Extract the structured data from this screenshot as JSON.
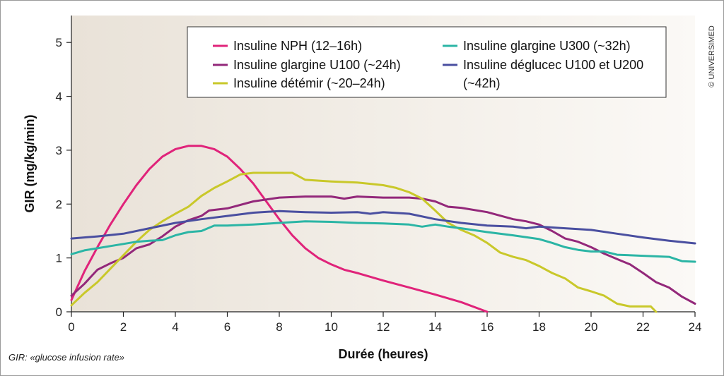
{
  "footnote": "GIR: «glucose infusion rate»",
  "credit": "© UNIVERSIMED",
  "chart_data": {
    "type": "line",
    "xlabel": "Durée (heures)",
    "ylabel": "GIR (mg/kg/min)",
    "xlim": [
      0,
      24
    ],
    "ylim": [
      0,
      5.5
    ],
    "xticks": [
      0,
      2,
      4,
      6,
      8,
      10,
      12,
      14,
      16,
      18,
      20,
      22,
      24
    ],
    "yticks": [
      0,
      1,
      2,
      3,
      4,
      5
    ],
    "grid": false,
    "legend_position": "top-right",
    "series": [
      {
        "name": "Insuline NPH (12–16h)",
        "color": "#e0237a",
        "points": [
          [
            0,
            0.22
          ],
          [
            0.5,
            0.75
          ],
          [
            1,
            1.2
          ],
          [
            1.5,
            1.62
          ],
          [
            2,
            2.0
          ],
          [
            2.5,
            2.35
          ],
          [
            3,
            2.65
          ],
          [
            3.5,
            2.88
          ],
          [
            4,
            3.02
          ],
          [
            4.5,
            3.08
          ],
          [
            5,
            3.08
          ],
          [
            5.5,
            3.02
          ],
          [
            6,
            2.88
          ],
          [
            6.5,
            2.65
          ],
          [
            7,
            2.38
          ],
          [
            7.5,
            2.05
          ],
          [
            8,
            1.72
          ],
          [
            8.5,
            1.42
          ],
          [
            9,
            1.18
          ],
          [
            9.5,
            1.0
          ],
          [
            10,
            0.88
          ],
          [
            10.5,
            0.78
          ],
          [
            11,
            0.72
          ],
          [
            12,
            0.58
          ],
          [
            13,
            0.45
          ],
          [
            14,
            0.32
          ],
          [
            15,
            0.18
          ],
          [
            16,
            0.0
          ]
        ]
      },
      {
        "name": "Insuline glargine U100 (~24h)",
        "color": "#93287a",
        "points": [
          [
            0,
            0.3
          ],
          [
            0.5,
            0.52
          ],
          [
            1,
            0.78
          ],
          [
            1.5,
            0.9
          ],
          [
            2,
            1.0
          ],
          [
            2.5,
            1.18
          ],
          [
            3,
            1.25
          ],
          [
            3.5,
            1.4
          ],
          [
            4,
            1.58
          ],
          [
            4.5,
            1.7
          ],
          [
            5,
            1.78
          ],
          [
            5.3,
            1.88
          ],
          [
            6,
            1.92
          ],
          [
            7,
            2.05
          ],
          [
            8,
            2.12
          ],
          [
            9,
            2.14
          ],
          [
            10,
            2.14
          ],
          [
            10.5,
            2.1
          ],
          [
            11,
            2.14
          ],
          [
            12,
            2.12
          ],
          [
            13,
            2.12
          ],
          [
            13.5,
            2.1
          ],
          [
            14,
            2.05
          ],
          [
            14.5,
            1.95
          ],
          [
            15,
            1.93
          ],
          [
            16,
            1.85
          ],
          [
            17,
            1.72
          ],
          [
            17.5,
            1.68
          ],
          [
            18,
            1.62
          ],
          [
            18.5,
            1.5
          ],
          [
            19,
            1.36
          ],
          [
            19.5,
            1.3
          ],
          [
            20,
            1.2
          ],
          [
            20.5,
            1.08
          ],
          [
            21,
            0.98
          ],
          [
            21.5,
            0.88
          ],
          [
            22,
            0.72
          ],
          [
            22.5,
            0.55
          ],
          [
            23,
            0.45
          ],
          [
            23.5,
            0.28
          ],
          [
            24,
            0.15
          ]
        ]
      },
      {
        "name": "Insuline détémir (~20–24h)",
        "color": "#c9c82a",
        "points": [
          [
            0,
            0.12
          ],
          [
            0.5,
            0.35
          ],
          [
            1,
            0.55
          ],
          [
            1.5,
            0.8
          ],
          [
            2,
            1.05
          ],
          [
            2.5,
            1.3
          ],
          [
            3,
            1.52
          ],
          [
            3.5,
            1.68
          ],
          [
            4,
            1.82
          ],
          [
            4.5,
            1.95
          ],
          [
            5,
            2.15
          ],
          [
            5.5,
            2.3
          ],
          [
            6,
            2.42
          ],
          [
            6.5,
            2.55
          ],
          [
            7,
            2.58
          ],
          [
            8,
            2.58
          ],
          [
            8.5,
            2.58
          ],
          [
            9,
            2.45
          ],
          [
            10,
            2.42
          ],
          [
            11,
            2.4
          ],
          [
            12,
            2.35
          ],
          [
            12.5,
            2.3
          ],
          [
            13,
            2.22
          ],
          [
            13.5,
            2.1
          ],
          [
            14,
            1.88
          ],
          [
            14.5,
            1.65
          ],
          [
            15,
            1.52
          ],
          [
            15.5,
            1.42
          ],
          [
            16,
            1.28
          ],
          [
            16.5,
            1.1
          ],
          [
            17,
            1.02
          ],
          [
            17.5,
            0.96
          ],
          [
            18,
            0.85
          ],
          [
            18.5,
            0.72
          ],
          [
            19,
            0.62
          ],
          [
            19.5,
            0.45
          ],
          [
            20,
            0.38
          ],
          [
            20.5,
            0.3
          ],
          [
            21,
            0.15
          ],
          [
            21.5,
            0.1
          ],
          [
            22,
            0.1
          ],
          [
            22.3,
            0.1
          ],
          [
            22.5,
            0.0
          ]
        ]
      },
      {
        "name": "Insuline glargine U300 (~32h)",
        "color": "#2bb5a5",
        "points": [
          [
            0,
            1.07
          ],
          [
            0.5,
            1.14
          ],
          [
            1,
            1.18
          ],
          [
            1.5,
            1.22
          ],
          [
            2,
            1.26
          ],
          [
            2.5,
            1.3
          ],
          [
            3,
            1.32
          ],
          [
            3.5,
            1.33
          ],
          [
            4,
            1.42
          ],
          [
            4.5,
            1.48
          ],
          [
            5,
            1.5
          ],
          [
            5.5,
            1.6
          ],
          [
            6,
            1.6
          ],
          [
            7,
            1.62
          ],
          [
            8,
            1.65
          ],
          [
            9,
            1.68
          ],
          [
            10,
            1.67
          ],
          [
            11,
            1.65
          ],
          [
            12,
            1.64
          ],
          [
            13,
            1.62
          ],
          [
            13.5,
            1.58
          ],
          [
            14,
            1.62
          ],
          [
            14.5,
            1.58
          ],
          [
            15,
            1.55
          ],
          [
            16,
            1.48
          ],
          [
            17,
            1.42
          ],
          [
            18,
            1.35
          ],
          [
            18.5,
            1.28
          ],
          [
            19,
            1.2
          ],
          [
            19.5,
            1.15
          ],
          [
            20,
            1.12
          ],
          [
            20.5,
            1.12
          ],
          [
            21,
            1.06
          ],
          [
            22,
            1.04
          ],
          [
            23,
            1.02
          ],
          [
            23.5,
            0.94
          ],
          [
            24,
            0.93
          ]
        ]
      },
      {
        "name": "Insuline déglucec U100 et U200 (~42h)",
        "color": "#4a4fa0",
        "points": [
          [
            0,
            1.36
          ],
          [
            1,
            1.4
          ],
          [
            2,
            1.45
          ],
          [
            3,
            1.55
          ],
          [
            4,
            1.65
          ],
          [
            5,
            1.72
          ],
          [
            6,
            1.78
          ],
          [
            7,
            1.84
          ],
          [
            8,
            1.87
          ],
          [
            9,
            1.85
          ],
          [
            10,
            1.84
          ],
          [
            11,
            1.85
          ],
          [
            11.5,
            1.82
          ],
          [
            12,
            1.85
          ],
          [
            13,
            1.82
          ],
          [
            14,
            1.72
          ],
          [
            15,
            1.65
          ],
          [
            16,
            1.6
          ],
          [
            17,
            1.58
          ],
          [
            17.5,
            1.55
          ],
          [
            18,
            1.58
          ],
          [
            19,
            1.55
          ],
          [
            20,
            1.52
          ],
          [
            21,
            1.45
          ],
          [
            22,
            1.38
          ],
          [
            23,
            1.32
          ],
          [
            24,
            1.27
          ]
        ]
      }
    ]
  }
}
